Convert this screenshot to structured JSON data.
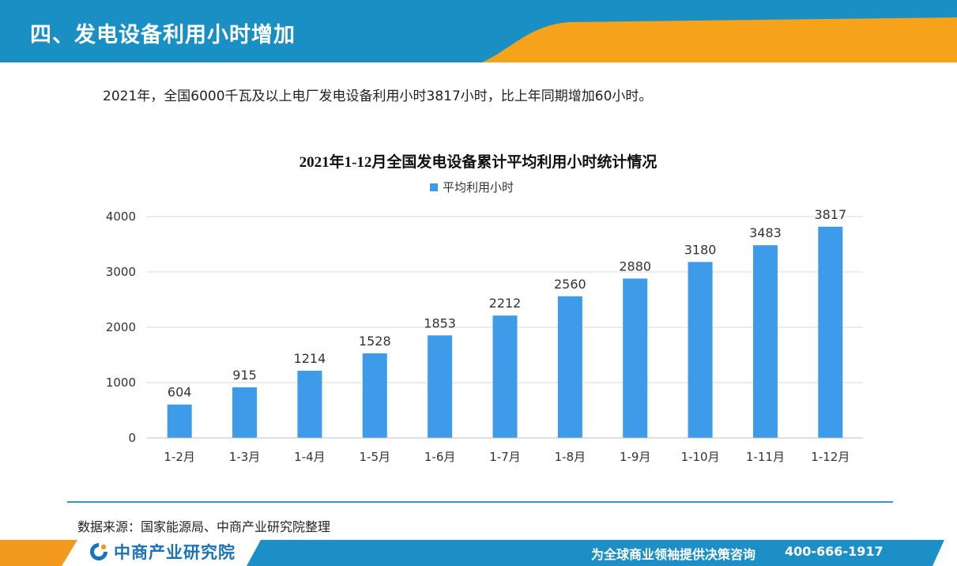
{
  "header": {
    "title": "四、发电设备利用小时增加"
  },
  "intro": "2021年，全国6000千瓦及以上电厂发电设备利用小时3817小时，比上年同期增加60小时。",
  "chart_data": {
    "type": "bar",
    "title": "2021年1-12月全国发电设备累计平均利用小时统计情况",
    "categories": [
      "1-2月",
      "1-3月",
      "1-4月",
      "1-5月",
      "1-6月",
      "1-7月",
      "1-8月",
      "1-9月",
      "1-10月",
      "1-11月",
      "1-12月"
    ],
    "series": [
      {
        "name": "平均利用小时",
        "values": [
          604,
          915,
          1214,
          1528,
          1853,
          2212,
          2560,
          2880,
          3180,
          3483,
          3817
        ],
        "color": "#3d9be9"
      }
    ],
    "ylim": [
      0,
      4000
    ],
    "yticks": [
      0,
      1000,
      2000,
      3000,
      4000
    ],
    "grid": true,
    "legend_position": "top-center",
    "data_labels": true
  },
  "source": "数据来源：国家能源局、中商产业研究院整理",
  "footer": {
    "logo_text": "中商产业研究院",
    "slogan": "为全球商业领袖提供决策咨询",
    "phone": "400-666-1917"
  },
  "colors": {
    "header_blue": "#1a8fc4",
    "header_orange": "#f7a21b",
    "bar": "#3d9be9",
    "grid": "#d9d9d9",
    "footer_blue": "#1d8fc7",
    "footer_orange": "#f39a1e"
  }
}
